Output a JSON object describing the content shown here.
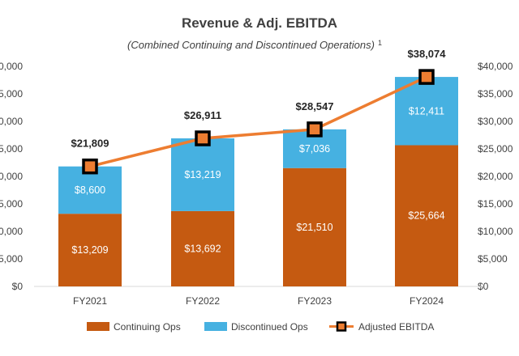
{
  "chart_data": {
    "type": "bar",
    "stacked": true,
    "title": "Revenue & Adj. EBITDA",
    "subtitle": "(Combined Continuing and Discontinued Operations)",
    "subtitle_footnote": "1",
    "categories": [
      "FY2021",
      "FY2022",
      "FY2023",
      "FY2024"
    ],
    "series": [
      {
        "name": "Continuing Ops",
        "values": [
          13209,
          13692,
          21510,
          25664
        ],
        "labels": [
          "$13,209",
          "$13,692",
          "$21,510",
          "$25,664"
        ],
        "color": "#c55a11"
      },
      {
        "name": "Discontinued Ops",
        "values": [
          8600,
          13219,
          7036,
          12411
        ],
        "labels": [
          "$8,600",
          "$13,219",
          "$7,036",
          "$12,411"
        ],
        "color": "#46b1e1"
      }
    ],
    "line_series": {
      "name": "Adjusted EBITDA",
      "values": [
        21809,
        26911,
        28547,
        38074
      ],
      "labels": [
        "$21,809",
        "$26,911",
        "$28,547",
        "$38,074"
      ],
      "color": "#ed7d31",
      "marker_border": "#000000"
    },
    "ylim": [
      0,
      40000
    ],
    "left_ticks": [
      "$0",
      "5,000",
      "0,000",
      "5,000",
      "0,000",
      "5,000",
      "0,000",
      "5,000",
      "0,000"
    ],
    "right_ticks": [
      "$0",
      "$5,000",
      "$10,000",
      "$15,000",
      "$20,000",
      "$25,000",
      "$30,000",
      "$35,000",
      "$40,000"
    ],
    "tick_values": [
      0,
      5000,
      10000,
      15000,
      20000,
      25000,
      30000,
      35000,
      40000
    ],
    "grid": false,
    "legend_position": "bottom"
  }
}
